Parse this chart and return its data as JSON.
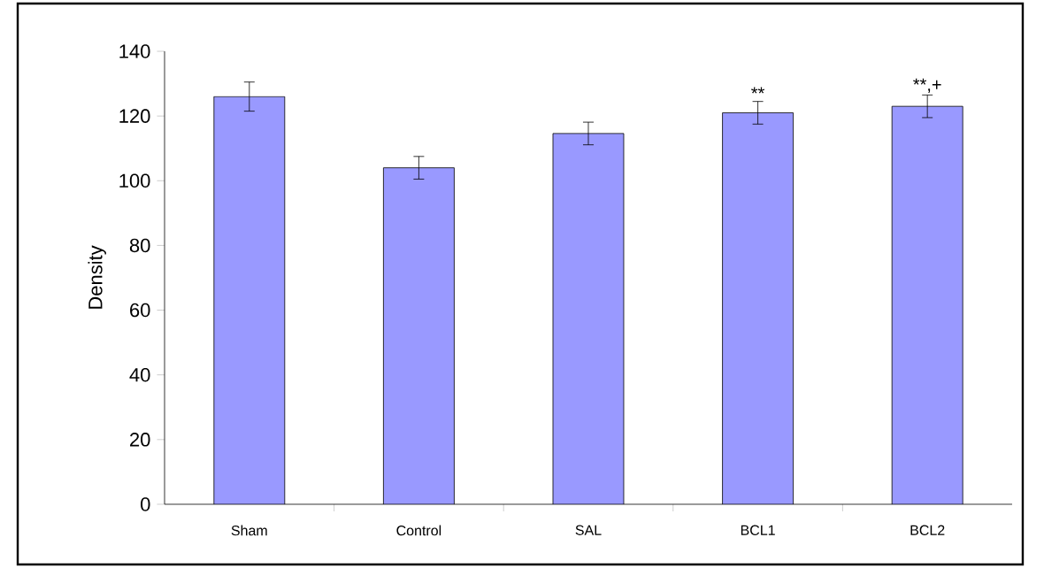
{
  "chart_data": {
    "type": "bar",
    "ylabel": "Density",
    "categories": [
      "Sham",
      "Control",
      "SAL",
      "BCL1",
      "BCL2"
    ],
    "values": [
      126,
      104,
      114.6,
      121,
      123
    ],
    "errors": [
      4.5,
      3.5,
      3.5,
      3.5,
      3.5
    ],
    "color": "#9999ff",
    "ylim": [
      0,
      140
    ],
    "yticks": [
      0,
      20,
      40,
      60,
      80,
      100,
      120,
      140
    ],
    "grid": false,
    "annotations": [
      {
        "text": "**",
        "x": "BCL1",
        "y": 124.5
      },
      {
        "text": "**,+",
        "x": "BCL2",
        "y": 126.5
      }
    ]
  }
}
